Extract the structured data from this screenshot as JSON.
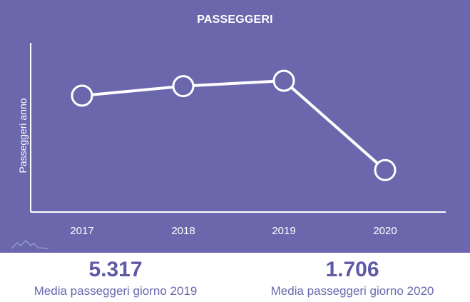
{
  "chart_data": {
    "type": "line",
    "title": "PASSEGGERI",
    "xlabel": "",
    "ylabel": "Passeggeri anno",
    "categories": [
      "2017",
      "2018",
      "2019",
      "2020"
    ],
    "series": [
      {
        "values": [
          1720000,
          1860000,
          1940000,
          620000
        ]
      }
    ],
    "ylim": [
      0,
      2500000
    ],
    "grid": false,
    "colors": {
      "background": "#6a67ad",
      "line": "#ffffff"
    }
  },
  "stats": [
    {
      "value": "5.317",
      "label": "Media passeggeri giorno 2019"
    },
    {
      "value": "1.706",
      "label": "Media passeggeri giorno 2020"
    }
  ],
  "logo": {
    "icon": "mountain-logo-icon"
  }
}
